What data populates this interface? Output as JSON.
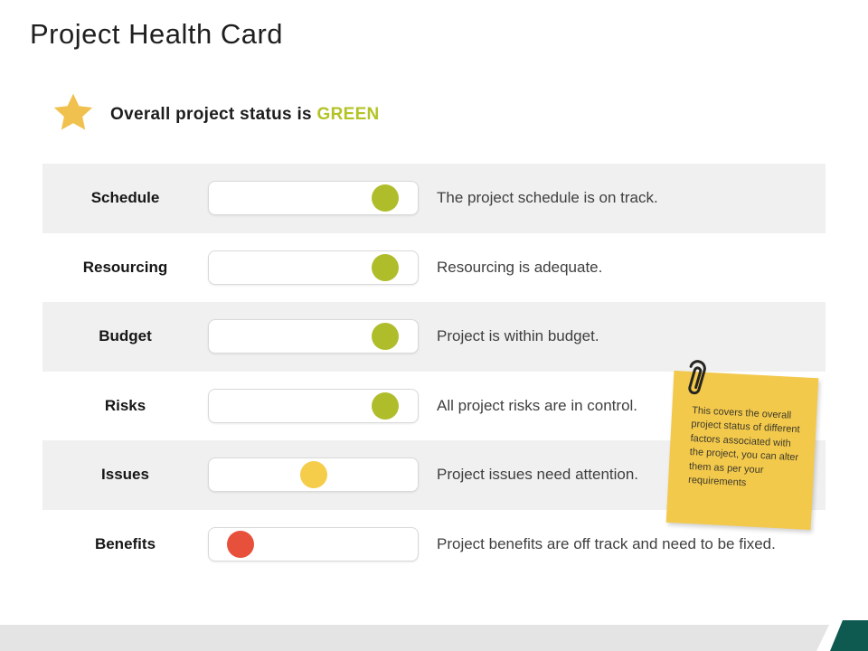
{
  "slide": {
    "title": "Project Health Card",
    "status": {
      "prefix": "Overall project status is ",
      "value": "GREEN"
    },
    "colors": {
      "green": "#b0bd2a",
      "yellow": "#f5cd4b",
      "red": "#e7503a",
      "status_text": "#b3c327",
      "star": "#f1c14f",
      "note_bg": "#f3c94c",
      "row_stripe": "#f0f0f0",
      "bottom_bar": "#e4e4e4",
      "corner_accent": "#0e5a50"
    },
    "rows": [
      {
        "label": "Schedule",
        "status": "green",
        "dot_position_pct": 84.5,
        "description": "The project schedule is on track."
      },
      {
        "label": "Resourcing",
        "status": "green",
        "dot_position_pct": 84.5,
        "description": "Resourcing is adequate."
      },
      {
        "label": "Budget",
        "status": "green",
        "dot_position_pct": 84.5,
        "description": "Project is within budget."
      },
      {
        "label": "Risks",
        "status": "green",
        "dot_position_pct": 84.5,
        "description": "All project risks are in control."
      },
      {
        "label": "Issues",
        "status": "yellow",
        "dot_position_pct": 50,
        "description": "Project issues need attention."
      },
      {
        "label": "Benefits",
        "status": "red",
        "dot_position_pct": 15,
        "description": "Project benefits are off track and need to be fixed."
      }
    ],
    "sticky_note": {
      "text": "This covers the overall project status of different factors associated with the project, you can alter them as per your requirements"
    }
  }
}
